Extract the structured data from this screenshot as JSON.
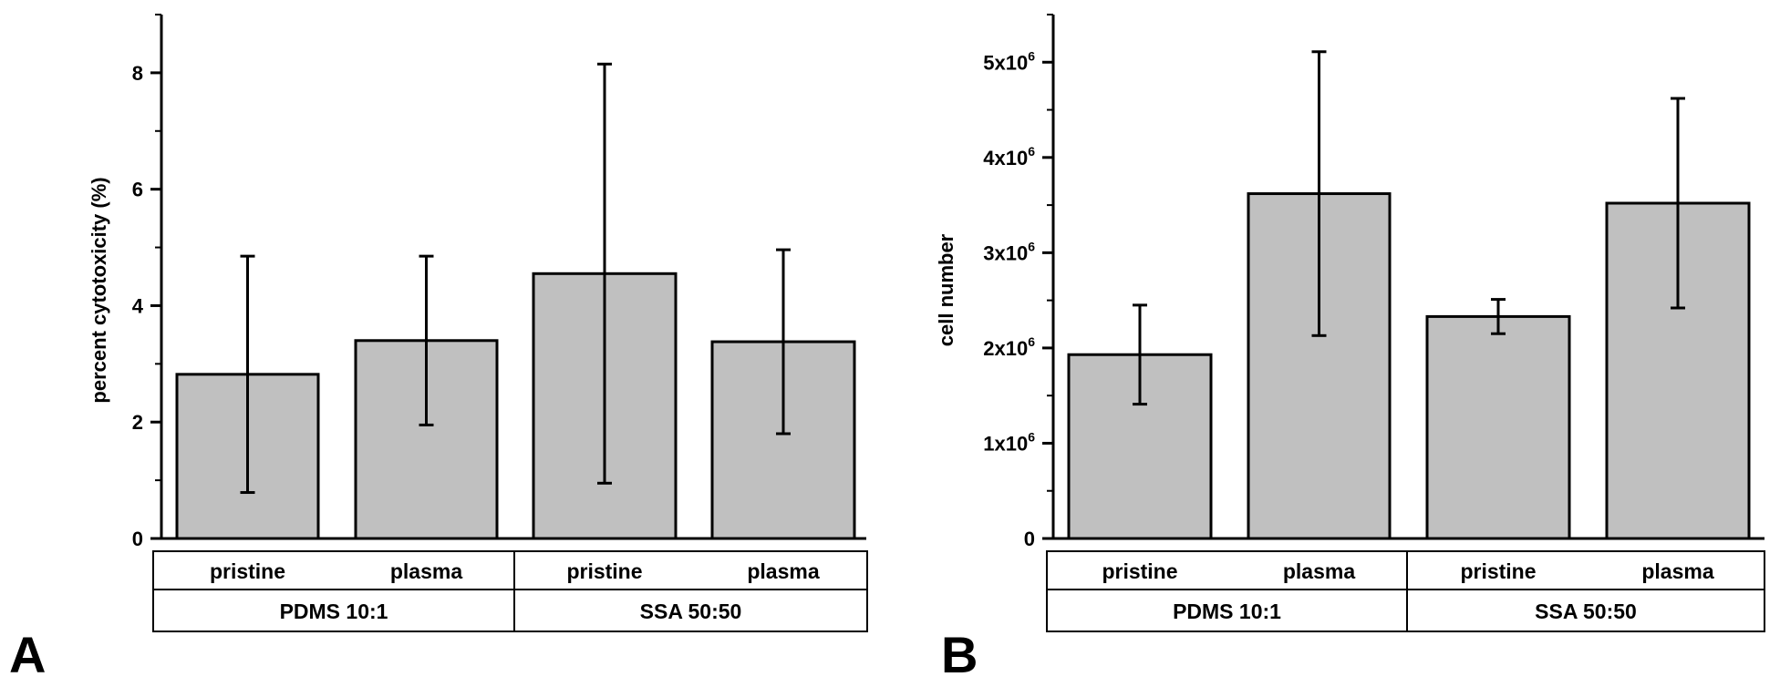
{
  "colors": {
    "bar_fill": "#c0c0c0",
    "stroke": "#000000",
    "background": "#ffffff"
  },
  "chart_data": [
    {
      "panel": "A",
      "type": "bar",
      "ylabel": "percent cytotoxicity (%)",
      "xlabel": "",
      "ylim": [
        0,
        9
      ],
      "yticks": [
        0,
        2,
        4,
        6,
        8
      ],
      "ytick_labels": [
        "0",
        "2",
        "4",
        "6",
        "8"
      ],
      "categories": [
        "pristine",
        "plasma",
        "pristine",
        "plasma"
      ],
      "groups": [
        "PDMS 10:1",
        "SSA 50:50"
      ],
      "values": [
        2.82,
        3.4,
        4.55,
        3.38
      ],
      "errors": [
        2.03,
        1.45,
        3.6,
        1.58
      ],
      "grid": false
    },
    {
      "panel": "B",
      "type": "bar",
      "ylabel": "cell number",
      "xlabel": "",
      "ylim": [
        0,
        5500000
      ],
      "yticks": [
        0,
        1000000,
        2000000,
        3000000,
        4000000,
        5000000
      ],
      "ytick_labels": [
        {
          "mant": "0",
          "exp": ""
        },
        {
          "mant": "1x10",
          "exp": "6"
        },
        {
          "mant": "2x10",
          "exp": "6"
        },
        {
          "mant": "3x10",
          "exp": "6"
        },
        {
          "mant": "4x10",
          "exp": "6"
        },
        {
          "mant": "5x10",
          "exp": "6"
        }
      ],
      "categories": [
        "pristine",
        "plasma",
        "pristine",
        "plasma"
      ],
      "groups": [
        "PDMS 10:1",
        "SSA 50:50"
      ],
      "values": [
        1930000,
        3620000,
        2330000,
        3520000
      ],
      "errors": [
        520000,
        1490000,
        180000,
        1100000
      ],
      "grid": false
    }
  ]
}
